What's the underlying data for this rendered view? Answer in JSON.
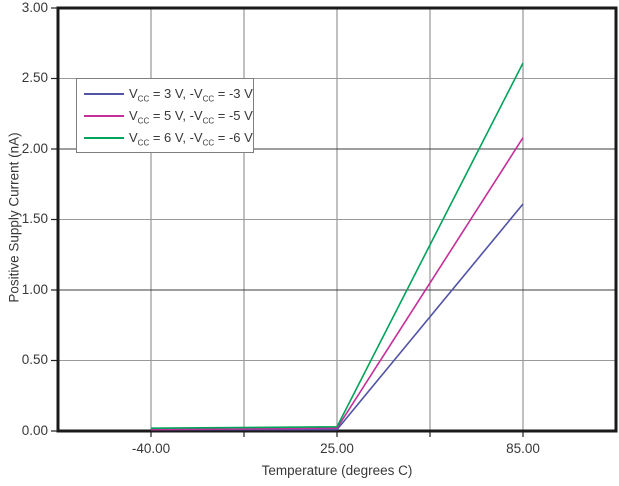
{
  "chart_data": {
    "type": "line",
    "title": "",
    "xlabel": "Temperature (degrees C)",
    "ylabel": "Positive Supply Current (nA)",
    "x_categories": [
      -40,
      25,
      85
    ],
    "x_tick_labels": [
      "-40.00",
      "25.00",
      "85.00"
    ],
    "y_ticks": [
      0,
      0.5,
      1,
      1.5,
      2,
      2.5,
      3
    ],
    "y_tick_labels": [
      "0.00",
      "0.50",
      "1.00",
      "1.50",
      "2.00",
      "2.50",
      "3.00"
    ],
    "ylim": [
      0,
      3
    ],
    "grid": "on",
    "legend_position": "upper-left-inside",
    "series": [
      {
        "name": "Vcc = 3 V, -Vcc = -3 V",
        "color": "#5153a5",
        "values": [
          0.01,
          0.01,
          1.61
        ]
      },
      {
        "name": "Vcc = 5 V, -Vcc = -5 V",
        "color": "#c42f99",
        "values": [
          0.01,
          0.02,
          2.08
        ]
      },
      {
        "name": "Vcc = 6 V, -Vcc = -6 V",
        "color": "#00a35a",
        "values": [
          0.02,
          0.03,
          2.61
        ]
      }
    ],
    "legend_parts": [
      {
        "p1": "V",
        "s1": "CC",
        "p2": " = 3 V, -V",
        "s2": "CC",
        "p3": " = -3 V"
      },
      {
        "p1": "V",
        "s1": "CC",
        "p2": " = 5 V, -V",
        "s2": "CC",
        "p3": " = -5 V"
      },
      {
        "p1": "V",
        "s1": "CC",
        "p2": " = 6 V, -V",
        "s2": "CC",
        "p3": " = -6 V"
      }
    ]
  }
}
